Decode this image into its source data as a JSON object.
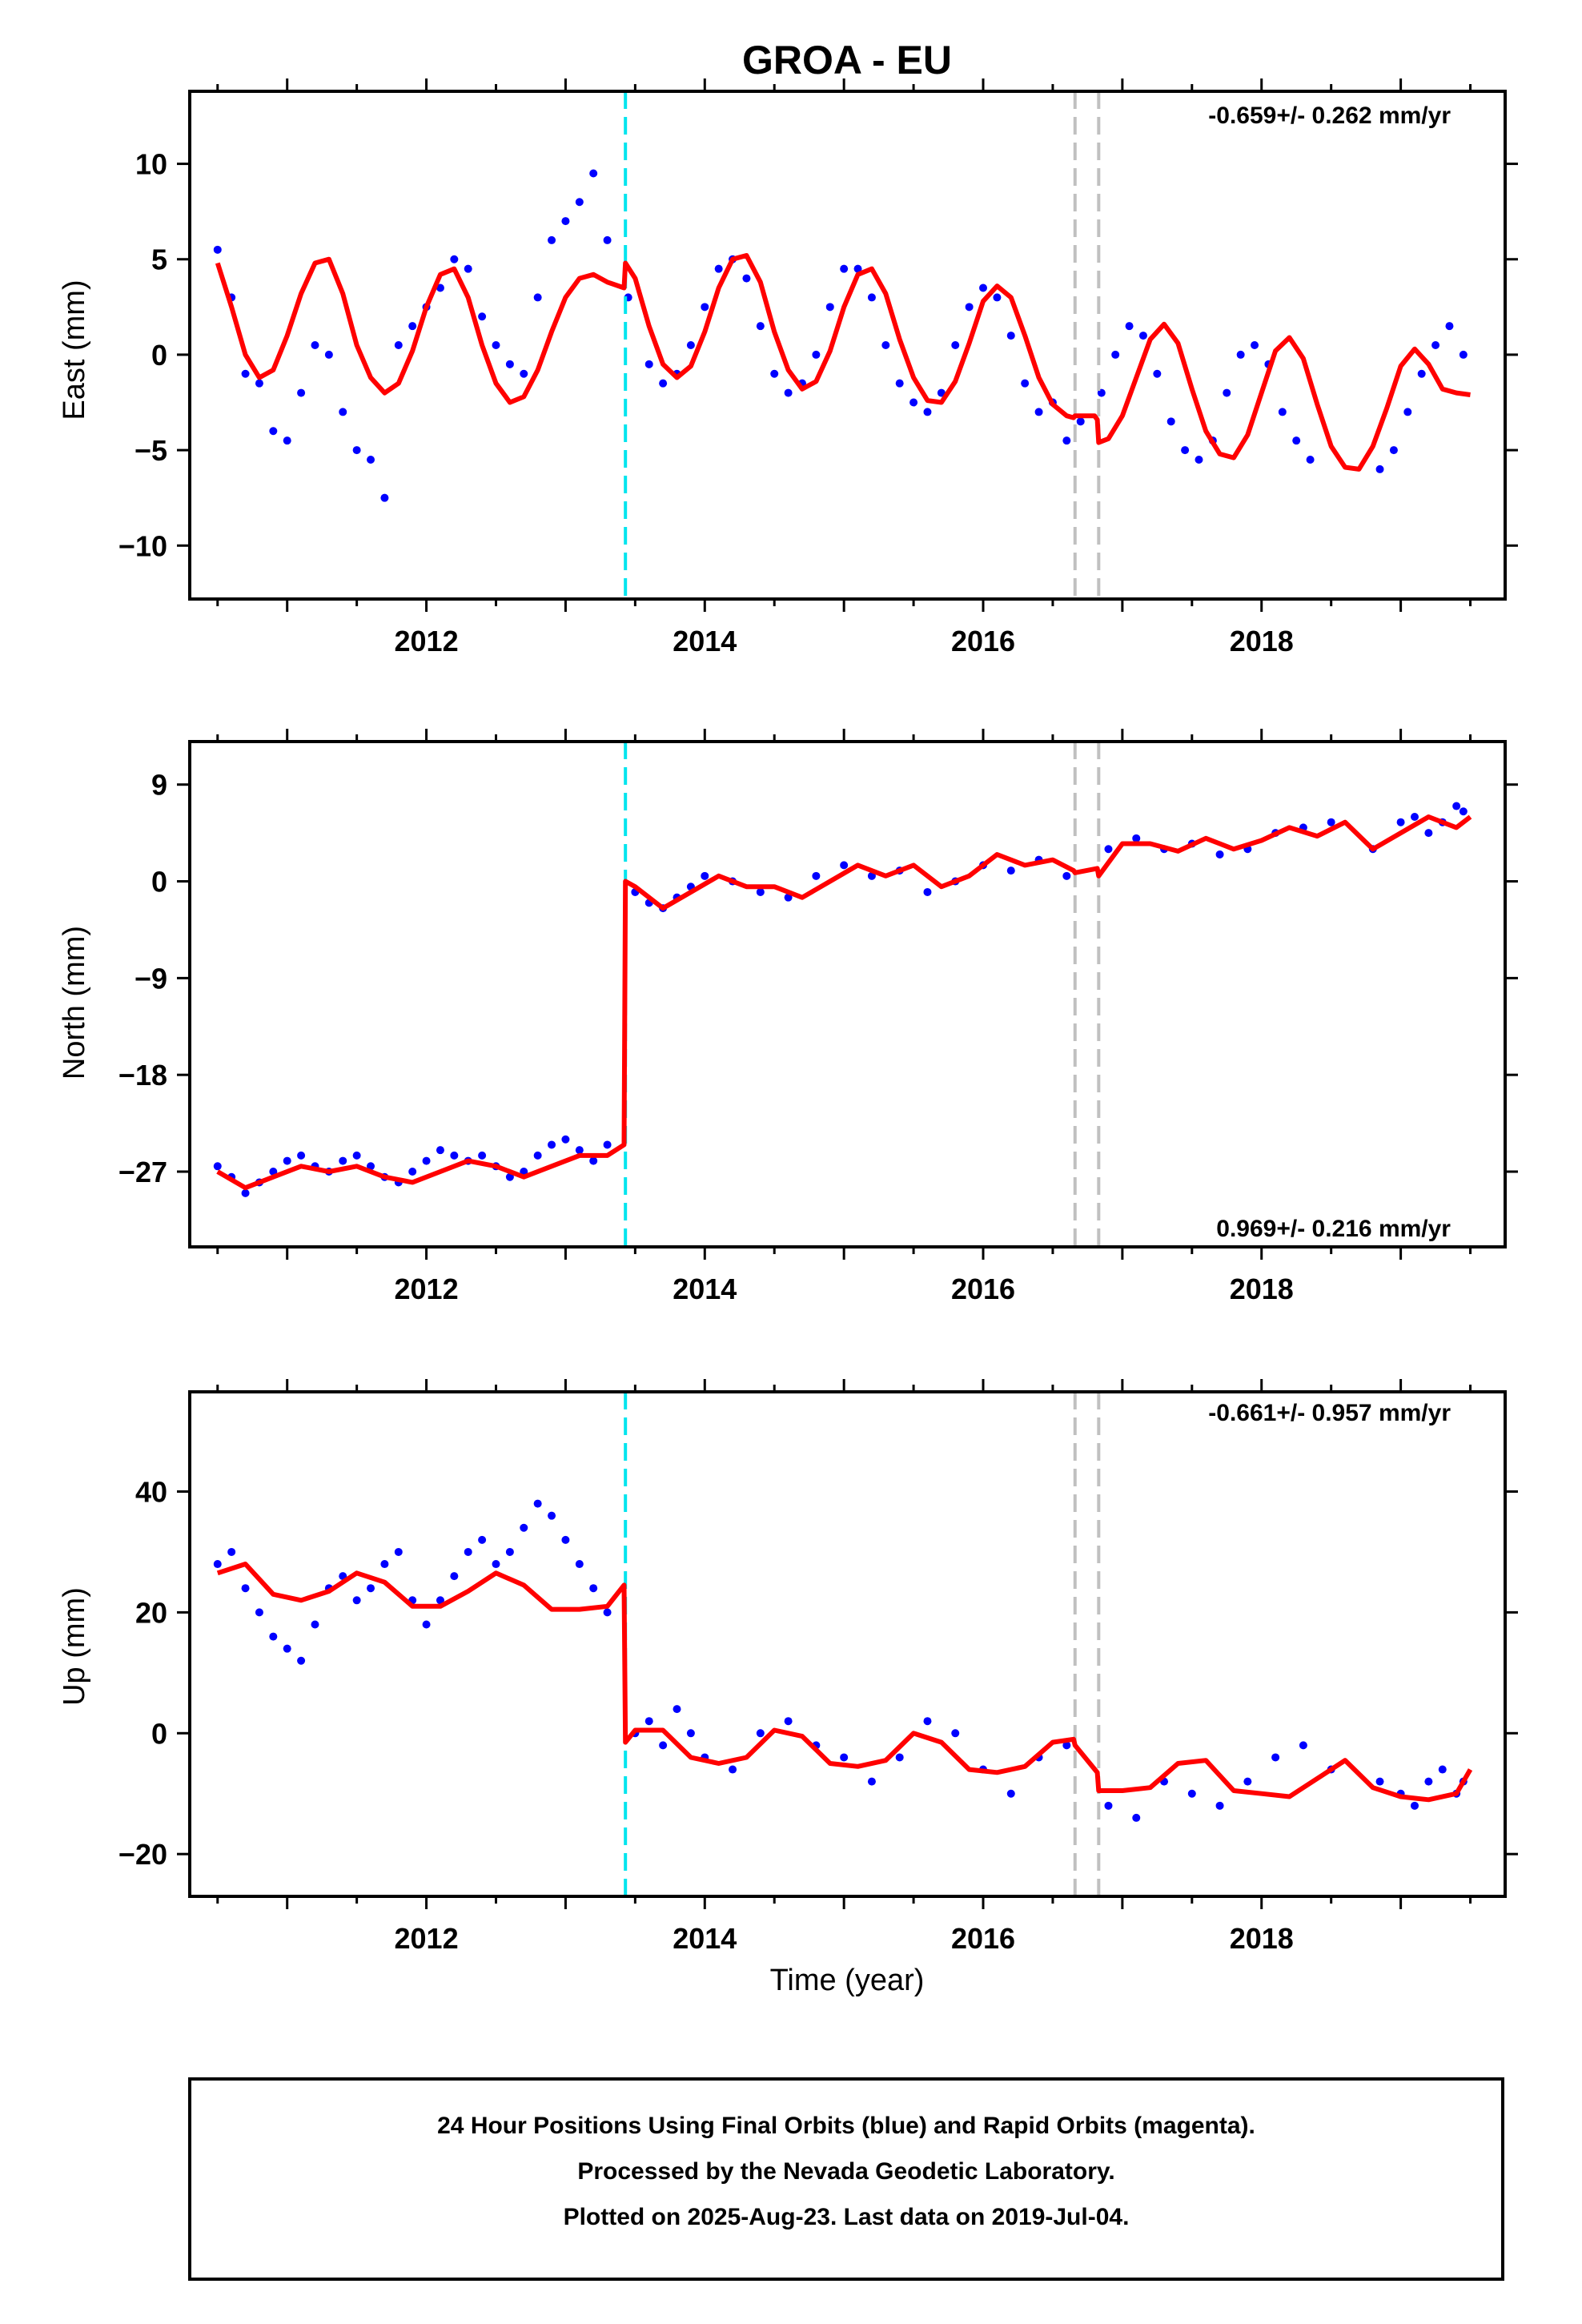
{
  "chart_data": [
    {
      "type": "scatter",
      "id": "east",
      "title": "GROA - EU",
      "ylabel": "East (mm)",
      "xlabel": "",
      "rate_label": "-0.659+/- 0.262 mm/yr",
      "rate_label_position": "top-right",
      "xlim": [
        2010.3,
        2019.75
      ],
      "ylim": [
        -12.8,
        13.8
      ],
      "x_ticks": [
        2012,
        2014,
        2016,
        2018
      ],
      "x_tick_labels": [
        "2012",
        "2014",
        "2016",
        "2018"
      ],
      "y_ticks": [
        -10,
        -5,
        0,
        5,
        10
      ],
      "y_tick_labels": [
        "−10",
        "−5",
        "0",
        "5",
        "10"
      ],
      "series": [
        {
          "kind": "scatter",
          "color": "#0000ff",
          "x": [
            2010.5,
            2010.6,
            2010.7,
            2010.8,
            2010.9,
            2011.0,
            2011.1,
            2011.2,
            2011.3,
            2011.4,
            2011.5,
            2011.6,
            2011.7,
            2011.8,
            2011.9,
            2012.0,
            2012.1,
            2012.2,
            2012.3,
            2012.4,
            2012.5,
            2012.6,
            2012.7,
            2012.8,
            2012.9,
            2013.0,
            2013.1,
            2013.2,
            2013.3,
            2013.45,
            2013.6,
            2013.7,
            2013.8,
            2013.9,
            2014.0,
            2014.1,
            2014.2,
            2014.3,
            2014.4,
            2014.5,
            2014.6,
            2014.7,
            2014.8,
            2014.9,
            2015.0,
            2015.1,
            2015.2,
            2015.3,
            2015.4,
            2015.5,
            2015.6,
            2015.7,
            2015.8,
            2015.9,
            2016.0,
            2016.1,
            2016.2,
            2016.3,
            2016.4,
            2016.5,
            2016.6,
            2016.7,
            2016.85,
            2016.95,
            2017.05,
            2017.15,
            2017.25,
            2017.35,
            2017.45,
            2017.55,
            2017.65,
            2017.75,
            2017.85,
            2017.95,
            2018.05,
            2018.15,
            2018.25,
            2018.35,
            2018.85,
            2018.95,
            2019.05,
            2019.15,
            2019.25,
            2019.35,
            2019.45
          ],
          "y": [
            5.5,
            3.0,
            -1.0,
            -1.5,
            -4.0,
            -4.5,
            -2.0,
            0.5,
            0.0,
            -3.0,
            -5.0,
            -5.5,
            -7.5,
            0.5,
            1.5,
            2.5,
            3.5,
            5.0,
            4.5,
            2.0,
            0.5,
            -0.5,
            -1.0,
            3.0,
            6.0,
            7.0,
            8.0,
            9.5,
            6.0,
            3.0,
            -0.5,
            -1.5,
            -1.0,
            0.5,
            2.5,
            4.5,
            5.0,
            4.0,
            1.5,
            -1.0,
            -2.0,
            -1.5,
            0.0,
            2.5,
            4.5,
            4.5,
            3.0,
            0.5,
            -1.5,
            -2.5,
            -3.0,
            -2.0,
            0.5,
            2.5,
            3.5,
            3.0,
            1.0,
            -1.5,
            -3.0,
            -2.5,
            -4.5,
            -3.5,
            -2.0,
            0.0,
            1.5,
            1.0,
            -1.0,
            -3.5,
            -5.0,
            -5.5,
            -4.5,
            -2.0,
            0.0,
            0.5,
            -0.5,
            -3.0,
            -4.5,
            -5.5,
            -6.0,
            -5.0,
            -3.0,
            -1.0,
            0.5,
            1.5,
            0.0
          ],
          "point_radius": 5
        },
        {
          "kind": "line",
          "color": "#ff0000",
          "name": "model fit",
          "x": [
            2010.5,
            2010.6,
            2010.7,
            2010.8,
            2010.9,
            2011.0,
            2011.1,
            2011.2,
            2011.3,
            2011.4,
            2011.5,
            2011.6,
            2011.7,
            2011.8,
            2011.9,
            2012.0,
            2012.1,
            2012.2,
            2012.3,
            2012.4,
            2012.5,
            2012.6,
            2012.7,
            2012.8,
            2012.9,
            2013.0,
            2013.1,
            2013.2,
            2013.3,
            2013.42,
            2013.43,
            2013.5,
            2013.6,
            2013.7,
            2013.8,
            2013.9,
            2014.0,
            2014.1,
            2014.2,
            2014.3,
            2014.4,
            2014.5,
            2014.6,
            2014.7,
            2014.8,
            2014.9,
            2015.0,
            2015.1,
            2015.2,
            2015.3,
            2015.4,
            2015.5,
            2015.6,
            2015.7,
            2015.8,
            2015.9,
            2016.0,
            2016.1,
            2016.2,
            2016.3,
            2016.4,
            2016.5,
            2016.6,
            2016.65,
            2016.66,
            2016.8,
            2016.82,
            2016.83,
            2016.9,
            2017.0,
            2017.1,
            2017.2,
            2017.3,
            2017.4,
            2017.5,
            2017.6,
            2017.7,
            2017.8,
            2017.9,
            2018.0,
            2018.1,
            2018.2,
            2018.3,
            2018.4,
            2018.5,
            2018.6,
            2018.7,
            2018.8,
            2018.9,
            2019.0,
            2019.1,
            2019.2,
            2019.3,
            2019.4,
            2019.5
          ],
          "y": [
            4.8,
            2.5,
            0.0,
            -1.2,
            -0.8,
            1.0,
            3.2,
            4.8,
            5.0,
            3.2,
            0.5,
            -1.2,
            -2.0,
            -1.5,
            0.2,
            2.5,
            4.2,
            4.5,
            3.0,
            0.5,
            -1.5,
            -2.5,
            -2.2,
            -0.8,
            1.2,
            3.0,
            4.0,
            4.2,
            3.8,
            3.5,
            4.8,
            4.0,
            1.5,
            -0.5,
            -1.2,
            -0.6,
            1.2,
            3.5,
            5.0,
            5.2,
            3.8,
            1.2,
            -0.8,
            -1.8,
            -1.4,
            0.2,
            2.5,
            4.2,
            4.5,
            3.2,
            0.8,
            -1.2,
            -2.4,
            -2.5,
            -1.4,
            0.6,
            2.8,
            3.6,
            3.0,
            1.0,
            -1.2,
            -2.6,
            -3.2,
            -3.3,
            -3.2,
            -3.2,
            -3.4,
            -4.6,
            -4.4,
            -3.2,
            -1.2,
            0.8,
            1.6,
            0.6,
            -1.8,
            -4.0,
            -5.2,
            -5.4,
            -4.2,
            -2.0,
            0.2,
            0.9,
            -0.2,
            -2.6,
            -4.8,
            -5.9,
            -6.0,
            -4.8,
            -2.8,
            -0.6,
            0.3,
            -0.5,
            -1.8,
            -2.0,
            -2.1
          ]
        }
      ],
      "vertical_lines": [
        {
          "x": 2013.43,
          "color": "#00e5ee"
        },
        {
          "x": 2016.66,
          "color": "#c0c0c0"
        },
        {
          "x": 2016.83,
          "color": "#c0c0c0"
        }
      ]
    },
    {
      "type": "scatter",
      "id": "north",
      "title": "",
      "ylabel": "North (mm)",
      "xlabel": "",
      "rate_label": "0.969+/- 0.216 mm/yr",
      "rate_label_position": "bottom-right",
      "xlim": [
        2010.3,
        2019.75
      ],
      "ylim": [
        -34,
        13
      ],
      "x_ticks": [
        2012,
        2014,
        2016,
        2018
      ],
      "x_tick_labels": [
        "2012",
        "2014",
        "2016",
        "2018"
      ],
      "y_ticks": [
        -27,
        -18,
        -9,
        0,
        9
      ],
      "y_tick_labels": [
        "−27",
        "−18",
        "−9",
        "0",
        "9"
      ],
      "series": [
        {
          "kind": "scatter",
          "color": "#0000ff",
          "x": [
            2010.5,
            2010.6,
            2010.7,
            2010.8,
            2010.9,
            2011.0,
            2011.1,
            2011.2,
            2011.3,
            2011.4,
            2011.5,
            2011.6,
            2011.7,
            2011.8,
            2011.9,
            2012.0,
            2012.1,
            2012.2,
            2012.3,
            2012.4,
            2012.5,
            2012.6,
            2012.7,
            2012.8,
            2012.9,
            2013.0,
            2013.1,
            2013.2,
            2013.3,
            2013.5,
            2013.6,
            2013.7,
            2013.8,
            2013.9,
            2014.0,
            2014.2,
            2014.4,
            2014.6,
            2014.8,
            2015.0,
            2015.2,
            2015.4,
            2015.6,
            2015.8,
            2016.0,
            2016.2,
            2016.4,
            2016.6,
            2016.9,
            2017.1,
            2017.3,
            2017.5,
            2017.7,
            2017.9,
            2018.1,
            2018.3,
            2018.5,
            2018.8,
            2019.0,
            2019.1,
            2019.2,
            2019.3,
            2019.4,
            2019.45
          ],
          "y": [
            -26.5,
            -27.5,
            -29.0,
            -28.0,
            -27.0,
            -26.0,
            -25.5,
            -26.5,
            -27.0,
            -26.0,
            -25.5,
            -26.5,
            -27.5,
            -28.0,
            -27.0,
            -26.0,
            -25.0,
            -25.5,
            -26.0,
            -25.5,
            -26.5,
            -27.5,
            -27.0,
            -25.5,
            -24.5,
            -24.0,
            -25.0,
            -26.0,
            -24.5,
            -1.0,
            -2.0,
            -2.5,
            -1.5,
            -0.5,
            0.5,
            0.0,
            -1.0,
            -1.5,
            0.5,
            1.5,
            0.5,
            1.0,
            -1.0,
            0.0,
            1.5,
            1.0,
            2.0,
            0.5,
            3.0,
            4.0,
            3.0,
            3.5,
            2.5,
            3.0,
            4.5,
            5.0,
            5.5,
            3.0,
            5.5,
            6.0,
            4.5,
            5.5,
            7.0,
            6.5
          ],
          "point_radius": 5
        },
        {
          "kind": "line",
          "color": "#ff0000",
          "name": "model fit",
          "x": [
            2010.5,
            2010.7,
            2010.9,
            2011.1,
            2011.3,
            2011.5,
            2011.7,
            2011.9,
            2012.1,
            2012.3,
            2012.5,
            2012.7,
            2012.9,
            2013.1,
            2013.3,
            2013.42,
            2013.43,
            2013.5,
            2013.7,
            2013.9,
            2014.1,
            2014.3,
            2014.5,
            2014.7,
            2014.9,
            2015.1,
            2015.3,
            2015.5,
            2015.7,
            2015.9,
            2016.1,
            2016.3,
            2016.5,
            2016.65,
            2016.66,
            2016.82,
            2016.83,
            2017.0,
            2017.2,
            2017.4,
            2017.6,
            2017.8,
            2018.0,
            2018.2,
            2018.4,
            2018.6,
            2018.8,
            2019.0,
            2019.2,
            2019.4,
            2019.5
          ],
          "y": [
            -27.0,
            -28.5,
            -27.5,
            -26.5,
            -27.0,
            -26.5,
            -27.5,
            -28.0,
            -27.0,
            -26.0,
            -26.5,
            -27.5,
            -26.5,
            -25.5,
            -25.5,
            -24.5,
            0.0,
            -0.5,
            -2.5,
            -1.0,
            0.5,
            -0.5,
            -0.5,
            -1.5,
            0.0,
            1.5,
            0.5,
            1.5,
            -0.5,
            0.5,
            2.5,
            1.5,
            2.0,
            1.0,
            0.8,
            1.2,
            0.5,
            3.5,
            3.5,
            2.8,
            4.0,
            3.0,
            3.8,
            5.0,
            4.2,
            5.5,
            3.0,
            4.5,
            6.0,
            5.0,
            6.0
          ]
        }
      ],
      "vertical_lines": [
        {
          "x": 2013.43,
          "color": "#00e5ee"
        },
        {
          "x": 2016.66,
          "color": "#c0c0c0"
        },
        {
          "x": 2016.83,
          "color": "#c0c0c0"
        }
      ]
    },
    {
      "type": "scatter",
      "id": "up",
      "title": "",
      "ylabel": "Up (mm)",
      "xlabel": "Time (year)",
      "rate_label": "-0.661+/- 0.957 mm/yr",
      "rate_label_position": "top-right",
      "xlim": [
        2010.3,
        2019.75
      ],
      "ylim": [
        -27,
        56.5
      ],
      "x_ticks": [
        2012,
        2014,
        2016,
        2018
      ],
      "x_tick_labels": [
        "2012",
        "2014",
        "2016",
        "2018"
      ],
      "y_ticks": [
        -20,
        0,
        20,
        40
      ],
      "y_tick_labels": [
        "−20",
        "0",
        "20",
        "40"
      ],
      "series": [
        {
          "kind": "scatter",
          "color": "#0000ff",
          "x": [
            2010.5,
            2010.6,
            2010.7,
            2010.8,
            2010.9,
            2011.0,
            2011.1,
            2011.2,
            2011.3,
            2011.4,
            2011.5,
            2011.6,
            2011.7,
            2011.8,
            2011.9,
            2012.0,
            2012.1,
            2012.2,
            2012.3,
            2012.4,
            2012.5,
            2012.6,
            2012.7,
            2012.8,
            2012.9,
            2013.0,
            2013.1,
            2013.2,
            2013.3,
            2013.5,
            2013.6,
            2013.7,
            2013.8,
            2013.9,
            2014.0,
            2014.2,
            2014.4,
            2014.6,
            2014.8,
            2015.0,
            2015.2,
            2015.4,
            2015.6,
            2015.8,
            2016.0,
            2016.2,
            2016.4,
            2016.6,
            2016.9,
            2017.1,
            2017.3,
            2017.5,
            2017.7,
            2017.9,
            2018.1,
            2018.3,
            2018.5,
            2018.85,
            2019.0,
            2019.1,
            2019.2,
            2019.3,
            2019.4,
            2019.45
          ],
          "y": [
            28,
            30,
            24,
            20,
            16,
            14,
            12,
            18,
            24,
            26,
            22,
            24,
            28,
            30,
            22,
            18,
            22,
            26,
            30,
            32,
            28,
            30,
            34,
            38,
            36,
            32,
            28,
            24,
            20,
            0,
            2,
            -2,
            4,
            0,
            -4,
            -6,
            0,
            2,
            -2,
            -4,
            -8,
            -4,
            2,
            0,
            -6,
            -10,
            -4,
            -2,
            -12,
            -14,
            -8,
            -10,
            -12,
            -8,
            -4,
            -2,
            -6,
            -8,
            -10,
            -12,
            -8,
            -6,
            -10,
            -8
          ],
          "point_radius": 5
        },
        {
          "kind": "line",
          "color": "#ff0000",
          "name": "model fit",
          "x": [
            2010.5,
            2010.7,
            2010.9,
            2011.1,
            2011.3,
            2011.5,
            2011.7,
            2011.9,
            2012.1,
            2012.3,
            2012.5,
            2012.7,
            2012.9,
            2013.1,
            2013.3,
            2013.42,
            2013.43,
            2013.5,
            2013.7,
            2013.9,
            2014.1,
            2014.3,
            2014.5,
            2014.7,
            2014.9,
            2015.1,
            2015.3,
            2015.5,
            2015.7,
            2015.9,
            2016.1,
            2016.3,
            2016.5,
            2016.65,
            2016.66,
            2016.82,
            2016.83,
            2017.0,
            2017.2,
            2017.4,
            2017.6,
            2017.8,
            2018.0,
            2018.2,
            2018.4,
            2018.6,
            2018.8,
            2019.0,
            2019.2,
            2019.4,
            2019.5
          ],
          "y": [
            26.5,
            28.0,
            23.0,
            22.0,
            23.5,
            26.5,
            25.0,
            21.0,
            21.0,
            23.5,
            26.5,
            24.5,
            20.5,
            20.5,
            21.0,
            24.5,
            -1.5,
            0.5,
            0.5,
            -4.0,
            -5.0,
            -4.0,
            0.5,
            -0.5,
            -5.0,
            -5.5,
            -4.5,
            0.0,
            -1.5,
            -6.0,
            -6.5,
            -5.5,
            -1.5,
            -1.0,
            -2.0,
            -6.5,
            -9.5,
            -9.5,
            -9.0,
            -5.0,
            -4.5,
            -9.5,
            -10.0,
            -10.5,
            -7.5,
            -4.5,
            -9.0,
            -10.5,
            -11.0,
            -10.0,
            -6.0
          ]
        }
      ],
      "vertical_lines": [
        {
          "x": 2013.43,
          "color": "#00e5ee"
        },
        {
          "x": 2016.66,
          "color": "#c0c0c0"
        },
        {
          "x": 2016.83,
          "color": "#c0c0c0"
        }
      ]
    }
  ],
  "footer": {
    "line1": "24 Hour Positions Using Final Orbits (blue) and Rapid Orbits (magenta).",
    "line2": "Processed by the Nevada Geodetic Laboratory.",
    "line3": "Plotted on 2025-Aug-23. Last data on 2019-Jul-04."
  }
}
